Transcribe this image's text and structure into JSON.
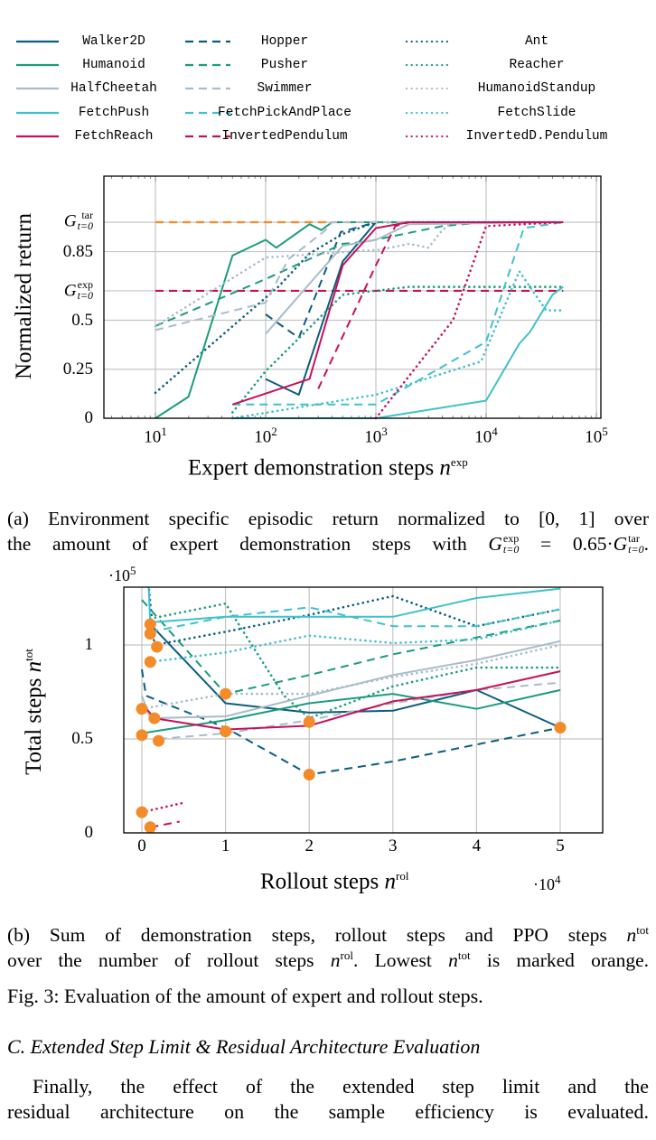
{
  "figure": {
    "caption_a": {
      "line1": "(a) Environment specific episodic return normalized to [0, 1] over",
      "line2_pre": "the amount of expert demonstration steps with ",
      "g_symbol": "G",
      "exp_sup": "exp",
      "tar_sup": "tar",
      "t_sub": "t=0",
      "eq_mid": " = 0.65·",
      "line2_end": "."
    },
    "caption_b": {
      "line1_pre": "(b) Sum of demonstration steps, rollout steps and PPO steps ",
      "n": "n",
      "tot": "tot",
      "rol": "rol",
      "line2_pre": "over the number of rollout steps ",
      "line2_mid": ". Lowest ",
      "line2_end": " is marked orange."
    },
    "fig_caption": "Fig. 3: Evaluation of the amount of expert and rollout steps."
  },
  "section": {
    "heading": "C. Extended Step Limit & Residual Architecture Evaluation",
    "paragraph_lines": [
      "Finally, the effect of the extended step limit and the",
      "residual architecture on the sample efficiency is evaluated."
    ]
  },
  "chart_data": [
    {
      "type": "line",
      "xscale": "log",
      "xlim": [
        3.4,
        110000
      ],
      "ylim": [
        0,
        1.23
      ],
      "grid": true,
      "xlabel": "Expert demonstration steps",
      "xlabel_var": "n",
      "xlabel_sup": "exp",
      "ylabel": "Normalized return",
      "x_ticks": [
        {
          "base": "10",
          "exp": "1"
        },
        {
          "base": "10",
          "exp": "2"
        },
        {
          "base": "10",
          "exp": "3"
        },
        {
          "base": "10",
          "exp": "4"
        },
        {
          "base": "10",
          "exp": "5"
        }
      ],
      "y_ticks": [
        "0",
        "0.25",
        "0.5",
        "0.85"
      ],
      "y_tick_values": [
        0,
        0.25,
        0.5,
        0.85
      ],
      "reference_lines": [
        {
          "label_g": "G",
          "label_sup": "tar",
          "label_sub": "t=0",
          "y": 1.0,
          "color": "#f48b29",
          "style": "dashed"
        },
        {
          "label_g": "G",
          "label_sup": "exp",
          "label_sub": "t=0",
          "y": 0.65,
          "color": "#c8105a",
          "style": "dashed"
        }
      ],
      "legend_position": "top (above plot, 3 columns)",
      "series": [
        {
          "name": "Walker2D",
          "color": "#0b5d7f",
          "style": "solid",
          "x": [
            100,
            200,
            500,
            1000,
            50000
          ],
          "y": [
            0.2,
            0.12,
            0.8,
            1.0,
            1.0
          ]
        },
        {
          "name": "Hopper",
          "color": "#0b5d7f",
          "style": "dashed",
          "x": [
            100,
            200,
            480,
            1000,
            50000
          ],
          "y": [
            0.53,
            0.41,
            0.95,
            1.0,
            1.0
          ]
        },
        {
          "name": "Ant",
          "color": "#0b5d7f",
          "style": "dotted",
          "x": [
            10,
            130,
            250,
            500,
            1000,
            50000
          ],
          "y": [
            0.13,
            0.67,
            0.84,
            0.94,
            1.0,
            1.0
          ]
        },
        {
          "name": "Humanoid",
          "color": "#1a9c7c",
          "style": "solid",
          "x": [
            10,
            20,
            50,
            100,
            125,
            250,
            320,
            400,
            50000
          ],
          "y": [
            0,
            0.11,
            0.83,
            0.91,
            0.87,
            0.99,
            0.96,
            1.0,
            1.0
          ]
        },
        {
          "name": "Pusher",
          "color": "#1a9c7c",
          "style": "dashed",
          "x": [
            10,
            100,
            500,
            800,
            4000,
            10000,
            50000
          ],
          "y": [
            0.47,
            0.71,
            0.89,
            0.9,
            0.98,
            1.0,
            1.0
          ]
        },
        {
          "name": "Reacher",
          "color": "#1a9c7c",
          "style": "dotted",
          "x": [
            50,
            100,
            500,
            1000,
            2000,
            50000
          ],
          "y": [
            0.03,
            0.24,
            0.63,
            0.65,
            0.67,
            0.67
          ]
        },
        {
          "name": "HalfCheetah",
          "color": "#a8bccb",
          "style": "solid",
          "x": [
            100,
            500,
            1000,
            2000,
            50000
          ],
          "y": [
            0.43,
            0.88,
            0.91,
            0.99,
            1.0
          ]
        },
        {
          "name": "Swimmer",
          "color": "#a8bccb",
          "style": "dashed",
          "x": [
            10,
            100,
            160,
            350,
            400,
            50000
          ],
          "y": [
            0.45,
            0.59,
            0.81,
            0.96,
            1.0,
            1.0
          ]
        },
        {
          "name": "HumanoidStandup",
          "color": "#a8bccb",
          "style": "dotted",
          "x": [
            10,
            100,
            1100,
            2000,
            3000,
            4000,
            5000,
            50000
          ],
          "y": [
            0.47,
            0.82,
            0.86,
            0.89,
            0.87,
            0.96,
            1.0,
            1.0
          ]
        },
        {
          "name": "FetchPush",
          "color": "#3fc1cb",
          "style": "solid",
          "x": [
            50,
            1000,
            10000,
            20000,
            25000,
            40000,
            50000
          ],
          "y": [
            0,
            0,
            0.09,
            0.38,
            0.44,
            0.63,
            0.67
          ]
        },
        {
          "name": "FetchPickAndPlace",
          "color": "#3fc1cb",
          "style": "dashed",
          "x": [
            50,
            1000,
            10000,
            22000,
            50000
          ],
          "y": [
            0.07,
            0.07,
            0.39,
            0.97,
            1.0
          ]
        },
        {
          "name": "FetchSlide",
          "color": "#3fc1cb",
          "style": "dotted",
          "x": [
            50,
            1000,
            9000,
            20000,
            35000,
            50000
          ],
          "y": [
            0,
            0.12,
            0.29,
            0.75,
            0.55,
            0.55
          ]
        },
        {
          "name": "FetchReach",
          "color": "#c8105a",
          "style": "solid",
          "x": [
            50,
            250,
            500,
            1000,
            2000,
            50000
          ],
          "y": [
            0.07,
            0.2,
            0.78,
            0.97,
            1.0,
            1.0
          ]
        },
        {
          "name": "InvertedPendulum",
          "color": "#c8105a",
          "style": "dashed",
          "x": [
            300,
            1000,
            1500,
            2000,
            50000
          ],
          "y": [
            0.15,
            0.78,
            0.98,
            1.0,
            1.0
          ]
        },
        {
          "name": "InvertedD.Pendulum",
          "color": "#c8105a",
          "style": "dotted",
          "x": [
            1000,
            5000,
            10000,
            50000
          ],
          "y": [
            0,
            0.5,
            0.98,
            1.0
          ]
        }
      ]
    },
    {
      "type": "line",
      "xlim": [
        -0.22,
        5.5
      ],
      "ylim": [
        0,
        1.31
      ],
      "x_multiplier": {
        "base": "10",
        "exp": "4"
      },
      "y_multiplier": {
        "base": "10",
        "exp": "5"
      },
      "grid": true,
      "xlabel": "Rollout steps",
      "xlabel_var": "n",
      "xlabel_sup": "rol",
      "ylabel": "Total steps",
      "ylabel_var": "n",
      "ylabel_sup": "tot",
      "x_ticks": [
        "0",
        "1",
        "2",
        "3",
        "4",
        "5"
      ],
      "x_tick_values": [
        0,
        1,
        2,
        3,
        4,
        5
      ],
      "y_ticks": [
        "0",
        "0.5",
        "1"
      ],
      "y_tick_values": [
        0,
        0.5,
        1
      ],
      "minimum_marker_color": "#f48b29",
      "series": [
        {
          "name": "Walker2D",
          "color": "#0b5d7f",
          "style": "solid",
          "x": [
            0.1,
            1,
            2,
            3,
            4,
            5
          ],
          "y": [
            1.11,
            0.69,
            0.64,
            0.65,
            0.76,
            0.56
          ]
        },
        {
          "name": "Hopper",
          "color": "#0b5d7f",
          "style": "dashed",
          "x": [
            0,
            0.05,
            1,
            2,
            3,
            4,
            5
          ],
          "y": [
            0.87,
            0.73,
            0.56,
            0.31,
            0.38,
            0.47,
            0.56
          ]
        },
        {
          "name": "Ant",
          "color": "#0b5d7f",
          "style": "dotted",
          "x": [
            0.08,
            0.15,
            1,
            2,
            3,
            4,
            5
          ],
          "y": [
            1.32,
            1.0,
            1.07,
            1.16,
            1.26,
            1.1,
            1.19
          ]
        },
        {
          "name": "Humanoid",
          "color": "#1a9c7c",
          "style": "solid",
          "x": [
            0,
            1,
            2,
            3,
            4,
            5
          ],
          "y": [
            0.53,
            0.6,
            0.69,
            0.74,
            0.66,
            0.76
          ]
        },
        {
          "name": "Pusher",
          "color": "#1a9c7c",
          "style": "dashed",
          "x": [
            0,
            1,
            2,
            3,
            4,
            5
          ],
          "y": [
            1.24,
            0.74,
            0.84,
            0.95,
            1.04,
            1.13
          ]
        },
        {
          "name": "Reacher",
          "color": "#1a9c7c",
          "style": "dotted",
          "x": [
            0.1,
            1,
            1.7,
            2,
            3,
            4,
            5
          ],
          "y": [
            1.14,
            1.22,
            0.73,
            0.61,
            0.78,
            0.88,
            0.88
          ]
        },
        {
          "name": "HalfCheetah",
          "color": "#a8bccb",
          "style": "solid",
          "x": [
            0,
            0.1,
            1,
            2,
            3,
            4,
            5
          ],
          "y": [
            0.73,
            0.61,
            0.62,
            0.73,
            0.84,
            0.92,
            1.02
          ]
        },
        {
          "name": "Swimmer",
          "color": "#a8bccb",
          "style": "dashed",
          "x": [
            0.2,
            1,
            2,
            3,
            4,
            5
          ],
          "y": [
            0.5,
            0.53,
            0.6,
            0.69,
            0.76,
            0.8
          ]
        },
        {
          "name": "HumanoidStandup",
          "color": "#a8bccb",
          "style": "dotted",
          "x": [
            0,
            1,
            2,
            3,
            4,
            5
          ],
          "y": [
            0.66,
            0.74,
            0.74,
            0.83,
            0.9,
            1.0
          ]
        },
        {
          "name": "FetchPush",
          "color": "#3fc1cb",
          "style": "solid",
          "x": [
            0.08,
            0.1,
            1,
            2,
            3,
            4,
            5
          ],
          "y": [
            1.32,
            1.12,
            1.15,
            1.15,
            1.15,
            1.25,
            1.3
          ]
        },
        {
          "name": "FetchPickAndPlace",
          "color": "#3fc1cb",
          "style": "dashed",
          "x": [
            0.1,
            1,
            2,
            3,
            4,
            5
          ],
          "y": [
            1.07,
            1.15,
            1.2,
            1.1,
            1.1,
            1.19
          ]
        },
        {
          "name": "FetchSlide",
          "color": "#3fc1cb",
          "style": "dotted",
          "x": [
            0.1,
            1,
            2,
            3,
            4,
            5
          ],
          "y": [
            0.91,
            0.96,
            1.05,
            1.01,
            1.03,
            1.13
          ]
        },
        {
          "name": "FetchReach",
          "color": "#c8105a",
          "style": "solid",
          "x": [
            0,
            0.15,
            1,
            2,
            3,
            4,
            5
          ],
          "y": [
            0.69,
            0.61,
            0.55,
            0.57,
            0.7,
            0.76,
            0.86
          ]
        },
        {
          "name": "InvertedPendulum",
          "color": "#c8105a",
          "style": "dashed",
          "x": [
            0.1,
            0.45
          ],
          "y": [
            0.03,
            0.06
          ]
        },
        {
          "name": "InvertedD.Pendulum",
          "color": "#c8105a",
          "style": "dotted",
          "x": [
            0,
            0.5
          ],
          "y": [
            0.11,
            0.16
          ]
        }
      ],
      "minimum_points": [
        {
          "x": 0.1,
          "y": 1.11
        },
        {
          "x": 0.1,
          "y": 1.06
        },
        {
          "x": 0.18,
          "y": 0.99
        },
        {
          "x": 0.1,
          "y": 0.91
        },
        {
          "x": 0,
          "y": 0.66
        },
        {
          "x": 0.15,
          "y": 0.61
        },
        {
          "x": 0,
          "y": 0.52
        },
        {
          "x": 0.2,
          "y": 0.49
        },
        {
          "x": 1,
          "y": 0.74
        },
        {
          "x": 1,
          "y": 0.54
        },
        {
          "x": 2,
          "y": 0.59
        },
        {
          "x": 2,
          "y": 0.31
        },
        {
          "x": 5,
          "y": 0.56
        },
        {
          "x": 0,
          "y": 0.11
        },
        {
          "x": 0.1,
          "y": 0.03
        }
      ]
    }
  ]
}
